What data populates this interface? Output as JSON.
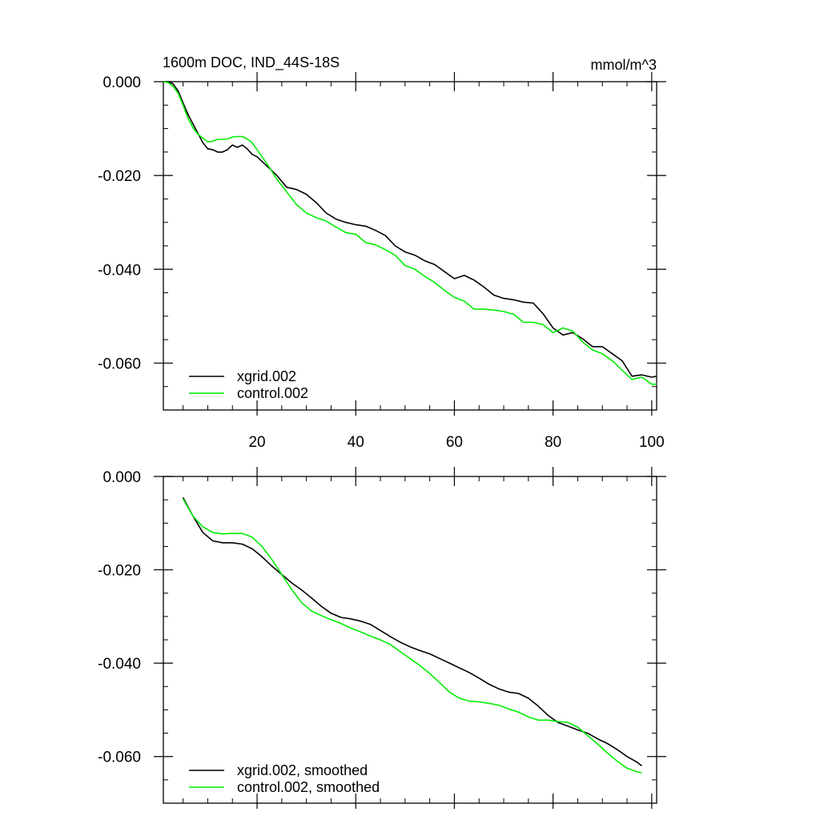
{
  "chart_data": [
    {
      "type": "line",
      "title": "1600m DOC, IND_44S-18S",
      "units": "mmol/m^3",
      "xlim": [
        1,
        101
      ],
      "ylim": [
        -0.07,
        0.0
      ],
      "x_ticks": [
        20,
        40,
        60,
        80,
        100
      ],
      "x_tick_labels": [
        "20",
        "40",
        "60",
        "80",
        "100"
      ],
      "y_ticks": [
        0.0,
        -0.02,
        -0.04,
        -0.06
      ],
      "y_tick_labels": [
        "0.000",
        "-0.020",
        "-0.040",
        "-0.060"
      ],
      "colors": {
        "xgrid": "#000000",
        "control": "#00ee00"
      },
      "series": [
        {
          "name": "xgrid.002",
          "color": "#000000",
          "points": [
            [
              1,
              0.0
            ],
            [
              2,
              0.0
            ],
            [
              3,
              -0.0005
            ],
            [
              4,
              -0.002
            ],
            [
              5,
              -0.0045
            ],
            [
              6,
              -0.007
            ],
            [
              7,
              -0.009
            ],
            [
              8,
              -0.011
            ],
            [
              9,
              -0.013
            ],
            [
              10,
              -0.0143
            ],
            [
              11,
              -0.0145
            ],
            [
              12,
              -0.015
            ],
            [
              13,
              -0.015
            ],
            [
              14,
              -0.0145
            ],
            [
              15,
              -0.0135
            ],
            [
              16,
              -0.014
            ],
            [
              17,
              -0.0135
            ],
            [
              18,
              -0.0143
            ],
            [
              19,
              -0.0155
            ],
            [
              20,
              -0.016
            ],
            [
              22,
              -0.018
            ],
            [
              24,
              -0.02
            ],
            [
              26,
              -0.0225
            ],
            [
              28,
              -0.023
            ],
            [
              30,
              -0.024
            ],
            [
              32,
              -0.0258
            ],
            [
              34,
              -0.028
            ],
            [
              36,
              -0.0293
            ],
            [
              38,
              -0.03
            ],
            [
              40,
              -0.0305
            ],
            [
              42,
              -0.0308
            ],
            [
              44,
              -0.0317
            ],
            [
              46,
              -0.0328
            ],
            [
              48,
              -0.035
            ],
            [
              50,
              -0.0363
            ],
            [
              52,
              -0.037
            ],
            [
              54,
              -0.0382
            ],
            [
              56,
              -0.039
            ],
            [
              58,
              -0.0405
            ],
            [
              60,
              -0.042
            ],
            [
              62,
              -0.0413
            ],
            [
              64,
              -0.0423
            ],
            [
              66,
              -0.0438
            ],
            [
              68,
              -0.0455
            ],
            [
              70,
              -0.0462
            ],
            [
              72,
              -0.0465
            ],
            [
              74,
              -0.047
            ],
            [
              76,
              -0.0472
            ],
            [
              78,
              -0.0495
            ],
            [
              80,
              -0.0525
            ],
            [
              82,
              -0.054
            ],
            [
              84,
              -0.0535
            ],
            [
              86,
              -0.0548
            ],
            [
              88,
              -0.0565
            ],
            [
              90,
              -0.0565
            ],
            [
              92,
              -0.058
            ],
            [
              94,
              -0.0595
            ],
            [
              96,
              -0.0628
            ],
            [
              98,
              -0.0625
            ],
            [
              100,
              -0.063
            ],
            [
              101,
              -0.0628
            ]
          ]
        },
        {
          "name": "control.002",
          "color": "#00ee00",
          "points": [
            [
              1,
              0.0
            ],
            [
              2,
              -0.0002
            ],
            [
              3,
              -0.001
            ],
            [
              4,
              -0.0025
            ],
            [
              5,
              -0.005
            ],
            [
              6,
              -0.0078
            ],
            [
              7,
              -0.0098
            ],
            [
              8,
              -0.0112
            ],
            [
              9,
              -0.012
            ],
            [
              10,
              -0.0128
            ],
            [
              11,
              -0.0127
            ],
            [
              12,
              -0.0123
            ],
            [
              13,
              -0.0123
            ],
            [
              14,
              -0.0122
            ],
            [
              15,
              -0.0118
            ],
            [
              16,
              -0.0117
            ],
            [
              17,
              -0.0117
            ],
            [
              18,
              -0.0122
            ],
            [
              19,
              -0.013
            ],
            [
              20,
              -0.0145
            ],
            [
              22,
              -0.0175
            ],
            [
              24,
              -0.0208
            ],
            [
              26,
              -0.0235
            ],
            [
              28,
              -0.0262
            ],
            [
              30,
              -0.028
            ],
            [
              32,
              -0.029
            ],
            [
              34,
              -0.0297
            ],
            [
              36,
              -0.031
            ],
            [
              38,
              -0.0322
            ],
            [
              40,
              -0.0325
            ],
            [
              42,
              -0.0343
            ],
            [
              44,
              -0.0348
            ],
            [
              46,
              -0.0358
            ],
            [
              48,
              -0.037
            ],
            [
              50,
              -0.0392
            ],
            [
              52,
              -0.04
            ],
            [
              54,
              -0.0415
            ],
            [
              56,
              -0.0428
            ],
            [
              58,
              -0.0445
            ],
            [
              60,
              -0.046
            ],
            [
              62,
              -0.0468
            ],
            [
              64,
              -0.0485
            ],
            [
              66,
              -0.0485
            ],
            [
              68,
              -0.0487
            ],
            [
              70,
              -0.049
            ],
            [
              72,
              -0.0496
            ],
            [
              74,
              -0.0513
            ],
            [
              76,
              -0.0513
            ],
            [
              78,
              -0.0518
            ],
            [
              80,
              -0.0535
            ],
            [
              82,
              -0.0525
            ],
            [
              84,
              -0.0532
            ],
            [
              86,
              -0.0555
            ],
            [
              88,
              -0.0572
            ],
            [
              90,
              -0.058
            ],
            [
              92,
              -0.0595
            ],
            [
              94,
              -0.0615
            ],
            [
              96,
              -0.0635
            ],
            [
              98,
              -0.063
            ],
            [
              100,
              -0.0645
            ],
            [
              101,
              -0.0645
            ]
          ]
        }
      ]
    },
    {
      "type": "line",
      "xlim": [
        1,
        101
      ],
      "ylim": [
        -0.07,
        0.0
      ],
      "x_ticks": [
        20,
        40,
        60,
        80,
        100
      ],
      "y_ticks": [
        0.0,
        -0.02,
        -0.04,
        -0.06
      ],
      "y_tick_labels": [
        "0.000",
        "-0.020",
        "-0.040",
        "-0.060"
      ],
      "series": [
        {
          "name": "xgrid.002, smoothed",
          "color": "#000000",
          "points": [
            [
              5,
              -0.0045
            ],
            [
              7,
              -0.0085
            ],
            [
              9,
              -0.012
            ],
            [
              11,
              -0.0138
            ],
            [
              13,
              -0.0142
            ],
            [
              15,
              -0.0142
            ],
            [
              17,
              -0.0145
            ],
            [
              19,
              -0.0155
            ],
            [
              21,
              -0.0172
            ],
            [
              23,
              -0.0192
            ],
            [
              25,
              -0.021
            ],
            [
              27,
              -0.0228
            ],
            [
              29,
              -0.0243
            ],
            [
              31,
              -0.026
            ],
            [
              33,
              -0.0278
            ],
            [
              35,
              -0.0293
            ],
            [
              37,
              -0.0302
            ],
            [
              39,
              -0.0305
            ],
            [
              41,
              -0.031
            ],
            [
              43,
              -0.0317
            ],
            [
              45,
              -0.033
            ],
            [
              47,
              -0.0343
            ],
            [
              49,
              -0.0355
            ],
            [
              51,
              -0.0365
            ],
            [
              53,
              -0.0373
            ],
            [
              55,
              -0.038
            ],
            [
              57,
              -0.039
            ],
            [
              59,
              -0.04
            ],
            [
              61,
              -0.041
            ],
            [
              63,
              -0.042
            ],
            [
              65,
              -0.0432
            ],
            [
              67,
              -0.0445
            ],
            [
              69,
              -0.0455
            ],
            [
              71,
              -0.0462
            ],
            [
              73,
              -0.0465
            ],
            [
              75,
              -0.0475
            ],
            [
              77,
              -0.0492
            ],
            [
              79,
              -0.0512
            ],
            [
              81,
              -0.0527
            ],
            [
              83,
              -0.0535
            ],
            [
              85,
              -0.0543
            ],
            [
              87,
              -0.055
            ],
            [
              89,
              -0.0562
            ],
            [
              91,
              -0.0572
            ],
            [
              93,
              -0.0585
            ],
            [
              95,
              -0.06
            ],
            [
              97,
              -0.0612
            ],
            [
              98,
              -0.062
            ]
          ]
        },
        {
          "name": "control.002, smoothed",
          "color": "#00ee00",
          "points": [
            [
              5,
              -0.0048
            ],
            [
              7,
              -0.0085
            ],
            [
              9,
              -0.0108
            ],
            [
              11,
              -0.012
            ],
            [
              13,
              -0.0123
            ],
            [
              15,
              -0.0122
            ],
            [
              17,
              -0.0122
            ],
            [
              19,
              -0.013
            ],
            [
              21,
              -0.015
            ],
            [
              23,
              -0.0178
            ],
            [
              25,
              -0.021
            ],
            [
              27,
              -0.0242
            ],
            [
              29,
              -0.027
            ],
            [
              31,
              -0.0288
            ],
            [
              33,
              -0.0298
            ],
            [
              35,
              -0.0307
            ],
            [
              37,
              -0.0315
            ],
            [
              39,
              -0.0325
            ],
            [
              41,
              -0.0333
            ],
            [
              43,
              -0.0342
            ],
            [
              45,
              -0.035
            ],
            [
              47,
              -0.036
            ],
            [
              49,
              -0.0375
            ],
            [
              51,
              -0.039
            ],
            [
              53,
              -0.0405
            ],
            [
              55,
              -0.0422
            ],
            [
              57,
              -0.0442
            ],
            [
              59,
              -0.0462
            ],
            [
              61,
              -0.0475
            ],
            [
              63,
              -0.0481
            ],
            [
              65,
              -0.0483
            ],
            [
              67,
              -0.0486
            ],
            [
              69,
              -0.049
            ],
            [
              71,
              -0.0498
            ],
            [
              73,
              -0.0505
            ],
            [
              75,
              -0.0515
            ],
            [
              77,
              -0.0522
            ],
            [
              79,
              -0.0522
            ],
            [
              81,
              -0.0525
            ],
            [
              83,
              -0.0527
            ],
            [
              85,
              -0.0537
            ],
            [
              87,
              -0.0555
            ],
            [
              89,
              -0.0573
            ],
            [
              91,
              -0.0592
            ],
            [
              93,
              -0.061
            ],
            [
              95,
              -0.0625
            ],
            [
              97,
              -0.0633
            ],
            [
              98,
              -0.0635
            ]
          ]
        }
      ]
    }
  ]
}
